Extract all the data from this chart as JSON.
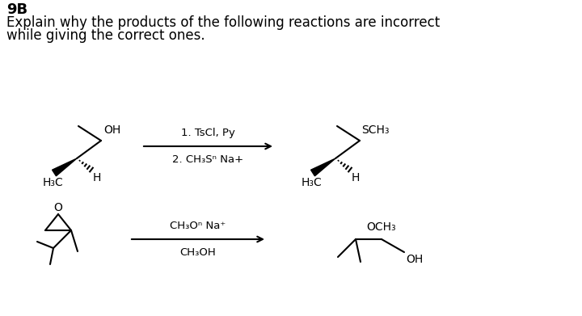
{
  "title_bold": "9B",
  "subtitle_line1": "Explain why the products of the following reactions are incorrect",
  "subtitle_line2": "while giving the correct ones.",
  "bg_color": "#ffffff",
  "text_color": "#000000",
  "fontsize_title": 13,
  "fontsize_body": 12,
  "fontsize_chem": 10
}
